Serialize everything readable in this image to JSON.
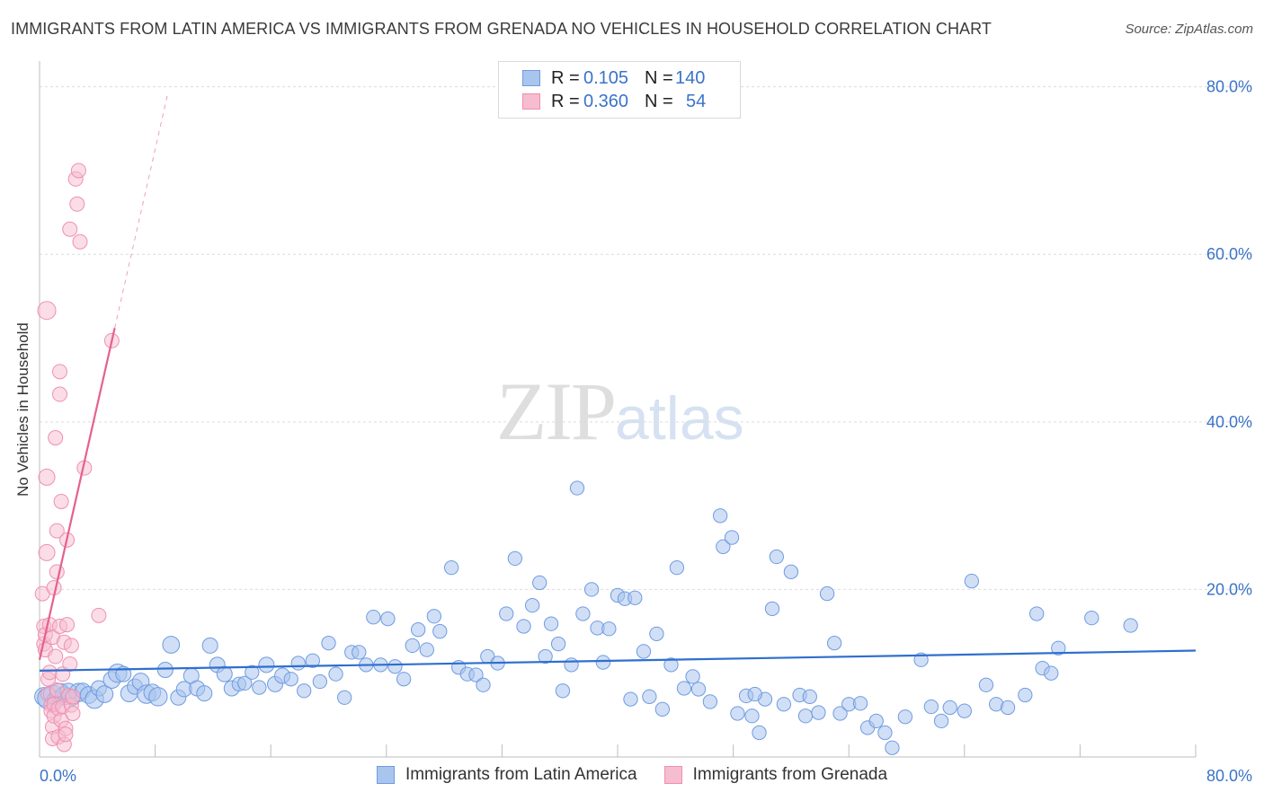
{
  "title": "IMMIGRANTS FROM LATIN AMERICA VS IMMIGRANTS FROM GRENADA NO VEHICLES IN HOUSEHOLD CORRELATION CHART",
  "source": "Source: ZipAtlas.com",
  "watermark": {
    "part1": "ZIP",
    "part2": "atlas"
  },
  "legend": {
    "rows": [
      {
        "r_label": "R =",
        "r_value": "0.105",
        "n_label": "N =",
        "n_value": "140"
      },
      {
        "r_label": "R =",
        "r_value": "0.360",
        "n_label": "N =",
        "n_value": "54"
      }
    ]
  },
  "bottom_legend": [
    "Immigrants from Latin America",
    "Immigrants from Grenada"
  ],
  "colors": {
    "blue_fill": "#a9c5ee",
    "blue_stroke": "#6f9be0",
    "blue_line": "#2f6fcf",
    "pink_fill": "#f6bcd0",
    "pink_stroke": "#ef90b0",
    "pink_line": "#e6608f",
    "tick_text": "#3a73c9",
    "grid": "#dcdcdc"
  },
  "chart_data": {
    "type": "scatter",
    "title": "IMMIGRANTS FROM LATIN AMERICA VS IMMIGRANTS FROM GRENADA NO VEHICLES IN HOUSEHOLD CORRELATION CHART",
    "xlabel": "",
    "ylabel": "No Vehicles in Household",
    "xlim": [
      0,
      80
    ],
    "ylim": [
      0,
      82
    ],
    "x_tick_labels": [
      "0.0%",
      "80.0%"
    ],
    "y_ticks": [
      20,
      40,
      60,
      80
    ],
    "y_tick_labels": [
      "20.0%",
      "40.0%",
      "60.0%",
      "80.0%"
    ],
    "grid": true,
    "legend_position": "top-center",
    "series": [
      {
        "name": "Immigrants from Latin America",
        "color": "#a9c5ee",
        "trend": {
          "x": [
            0,
            80
          ],
          "y": [
            10.3,
            12.7
          ]
        },
        "points": [
          [
            0.3,
            7.2,
            12
          ],
          [
            0.6,
            7.0,
            14
          ],
          [
            0.9,
            7.5,
            12
          ],
          [
            1.1,
            6.8,
            11
          ],
          [
            1.4,
            7.6,
            13
          ],
          [
            1.7,
            7.3,
            12
          ],
          [
            2.0,
            7.8,
            11
          ],
          [
            2.3,
            7.1,
            10
          ],
          [
            2.7,
            7.7,
            12
          ],
          [
            3.0,
            7.9,
            10
          ],
          [
            3.4,
            7.4,
            11
          ],
          [
            3.8,
            6.9,
            12
          ],
          [
            4.1,
            8.2,
            10
          ],
          [
            4.5,
            7.5,
            11
          ],
          [
            5.0,
            9.2,
            11
          ],
          [
            5.4,
            10.0,
            12
          ],
          [
            5.8,
            9.9,
            10
          ],
          [
            6.2,
            7.6,
            11
          ],
          [
            6.6,
            8.4,
            10
          ],
          [
            7.0,
            9.0,
            11
          ],
          [
            7.4,
            7.5,
            12
          ],
          [
            7.8,
            7.7,
            11
          ],
          [
            8.2,
            7.2,
            12
          ],
          [
            8.7,
            10.4,
            10
          ],
          [
            9.1,
            13.4,
            11
          ],
          [
            9.6,
            7.1,
            10
          ],
          [
            10.0,
            8.1,
            10
          ],
          [
            10.5,
            9.7,
            10
          ],
          [
            10.9,
            8.2,
            10
          ],
          [
            11.4,
            7.6,
            10
          ],
          [
            11.8,
            13.3,
            10
          ],
          [
            12.3,
            11.0,
            10
          ],
          [
            12.8,
            9.9,
            10
          ],
          [
            13.3,
            8.2,
            10
          ],
          [
            13.8,
            8.7,
            9
          ],
          [
            14.2,
            8.8,
            9
          ],
          [
            14.7,
            10.1,
            9
          ],
          [
            15.2,
            8.3,
            9
          ],
          [
            15.7,
            11.0,
            10
          ],
          [
            16.3,
            8.7,
            10
          ],
          [
            16.8,
            9.7,
            10
          ],
          [
            17.4,
            9.3,
            9
          ],
          [
            17.9,
            11.2,
            9
          ],
          [
            18.3,
            7.9,
            9
          ],
          [
            18.9,
            11.5,
            9
          ],
          [
            19.4,
            9.0,
            9
          ],
          [
            20.0,
            13.6,
            9
          ],
          [
            20.5,
            9.9,
            9
          ],
          [
            21.1,
            7.1,
            9
          ],
          [
            21.6,
            12.5,
            9
          ],
          [
            22.1,
            12.5,
            9
          ],
          [
            22.6,
            11.0,
            9
          ],
          [
            23.1,
            16.7,
            9
          ],
          [
            23.6,
            11.0,
            9
          ],
          [
            24.1,
            16.5,
            9
          ],
          [
            24.6,
            10.8,
            9
          ],
          [
            25.2,
            9.3,
            9
          ],
          [
            25.8,
            13.3,
            9
          ],
          [
            26.2,
            15.2,
            9
          ],
          [
            26.8,
            12.8,
            9
          ],
          [
            27.3,
            16.8,
            9
          ],
          [
            27.7,
            15.0,
            9
          ],
          [
            28.5,
            22.6,
            9
          ],
          [
            29.0,
            10.7,
            9
          ],
          [
            29.6,
            9.9,
            9
          ],
          [
            30.2,
            9.8,
            9
          ],
          [
            30.7,
            8.6,
            9
          ],
          [
            31.0,
            12.0,
            9
          ],
          [
            31.7,
            11.2,
            9
          ],
          [
            32.3,
            17.1,
            9
          ],
          [
            32.9,
            23.7,
            9
          ],
          [
            33.5,
            15.6,
            9
          ],
          [
            34.1,
            18.1,
            9
          ],
          [
            34.6,
            20.8,
            9
          ],
          [
            35.0,
            12.0,
            9
          ],
          [
            35.4,
            15.9,
            9
          ],
          [
            35.9,
            13.5,
            9
          ],
          [
            36.2,
            7.9,
            9
          ],
          [
            36.8,
            11.0,
            9
          ],
          [
            37.2,
            32.1,
            9
          ],
          [
            37.6,
            17.1,
            9
          ],
          [
            38.2,
            20.0,
            9
          ],
          [
            38.6,
            15.4,
            9
          ],
          [
            39.0,
            11.3,
            9
          ],
          [
            39.4,
            15.3,
            9
          ],
          [
            40.0,
            19.3,
            9
          ],
          [
            40.5,
            18.9,
            9
          ],
          [
            40.9,
            6.9,
            9
          ],
          [
            41.2,
            19.0,
            9
          ],
          [
            41.8,
            12.6,
            9
          ],
          [
            42.2,
            7.2,
            9
          ],
          [
            42.7,
            14.7,
            9
          ],
          [
            43.1,
            5.7,
            9
          ],
          [
            43.7,
            11.0,
            9
          ],
          [
            44.1,
            22.6,
            9
          ],
          [
            44.6,
            8.2,
            9
          ],
          [
            45.2,
            9.6,
            9
          ],
          [
            45.6,
            8.1,
            9
          ],
          [
            46.4,
            6.6,
            9
          ],
          [
            47.1,
            28.8,
            9
          ],
          [
            47.3,
            25.1,
            9
          ],
          [
            47.9,
            26.2,
            9
          ],
          [
            48.3,
            5.2,
            9
          ],
          [
            48.9,
            7.3,
            9
          ],
          [
            49.3,
            4.9,
            9
          ],
          [
            49.8,
            2.9,
            9
          ],
          [
            50.2,
            6.9,
            9
          ],
          [
            50.7,
            17.7,
            9
          ],
          [
            51.0,
            23.9,
            9
          ],
          [
            51.5,
            6.3,
            9
          ],
          [
            52.0,
            22.1,
            9
          ],
          [
            52.6,
            7.4,
            9
          ],
          [
            53.0,
            4.9,
            9
          ],
          [
            53.3,
            7.2,
            9
          ],
          [
            53.9,
            5.3,
            9
          ],
          [
            54.5,
            19.5,
            9
          ],
          [
            55.0,
            13.6,
            9
          ],
          [
            55.4,
            5.2,
            9
          ],
          [
            56.0,
            6.3,
            9
          ],
          [
            56.8,
            6.4,
            9
          ],
          [
            57.3,
            3.5,
            9
          ],
          [
            57.9,
            4.3,
            9
          ],
          [
            58.5,
            2.9,
            9
          ],
          [
            59.0,
            1.1,
            9
          ],
          [
            59.9,
            4.8,
            9
          ],
          [
            61.0,
            11.6,
            9
          ],
          [
            61.7,
            6.0,
            9
          ],
          [
            62.4,
            4.3,
            9
          ],
          [
            63.0,
            5.9,
            9
          ],
          [
            64.0,
            5.5,
            9
          ],
          [
            64.5,
            21.0,
            9
          ],
          [
            65.5,
            8.6,
            9
          ],
          [
            66.2,
            6.3,
            9
          ],
          [
            67.0,
            5.9,
            9
          ],
          [
            68.2,
            7.4,
            9
          ],
          [
            69.0,
            17.1,
            9
          ],
          [
            69.4,
            10.6,
            9
          ],
          [
            70.0,
            10.0,
            9
          ],
          [
            70.5,
            13.0,
            9
          ],
          [
            72.8,
            16.6,
            9
          ],
          [
            75.5,
            15.7,
            9
          ],
          [
            49.5,
            7.5,
            9
          ]
        ]
      },
      {
        "name": "Immigrants from Grenada",
        "color": "#f6bcd0",
        "trend": {
          "x": [
            0,
            5.2
          ],
          "y": [
            11.6,
            51.2
          ]
        },
        "trend_dashed": {
          "x": [
            5.2,
            8.9
          ],
          "y": [
            51.2,
            79.4
          ]
        },
        "points": [
          [
            0.2,
            19.5,
            8
          ],
          [
            0.3,
            15.6,
            8
          ],
          [
            0.3,
            13.5,
            8
          ],
          [
            0.4,
            14.6,
            8
          ],
          [
            0.4,
            12.8,
            8
          ],
          [
            0.5,
            24.4,
            9
          ],
          [
            0.5,
            33.4,
            9
          ],
          [
            0.5,
            53.3,
            10
          ],
          [
            0.6,
            9.3,
            8
          ],
          [
            0.6,
            7.5,
            8
          ],
          [
            0.7,
            10.1,
            8
          ],
          [
            0.7,
            15.8,
            8
          ],
          [
            0.8,
            6.2,
            8
          ],
          [
            0.8,
            5.5,
            8
          ],
          [
            0.9,
            3.6,
            8
          ],
          [
            0.9,
            2.2,
            8
          ],
          [
            0.9,
            14.3,
            8
          ],
          [
            1.0,
            20.2,
            8
          ],
          [
            1.0,
            4.9,
            8
          ],
          [
            1.0,
            6.3,
            8
          ],
          [
            1.1,
            12.0,
            8
          ],
          [
            1.1,
            38.1,
            8
          ],
          [
            1.2,
            22.1,
            8
          ],
          [
            1.2,
            27.0,
            8
          ],
          [
            1.2,
            8.0,
            8
          ],
          [
            1.3,
            5.8,
            8
          ],
          [
            1.3,
            2.4,
            8
          ],
          [
            1.4,
            15.6,
            8
          ],
          [
            1.4,
            43.3,
            8
          ],
          [
            1.4,
            46.0,
            8
          ],
          [
            1.5,
            30.5,
            8
          ],
          [
            1.5,
            4.4,
            8
          ],
          [
            1.6,
            9.9,
            8
          ],
          [
            1.6,
            6.0,
            8
          ],
          [
            1.7,
            13.7,
            8
          ],
          [
            1.7,
            1.5,
            8
          ],
          [
            1.8,
            3.4,
            8
          ],
          [
            1.8,
            2.7,
            8
          ],
          [
            1.9,
            25.9,
            8
          ],
          [
            1.9,
            15.8,
            8
          ],
          [
            2.0,
            7.3,
            8
          ],
          [
            2.1,
            11.1,
            8
          ],
          [
            2.2,
            6.2,
            8
          ],
          [
            2.3,
            7.2,
            8
          ],
          [
            2.1,
            63.0,
            8
          ],
          [
            2.2,
            13.3,
            8
          ],
          [
            2.3,
            5.2,
            8
          ],
          [
            2.5,
            69.0,
            8
          ],
          [
            2.6,
            66.0,
            8
          ],
          [
            2.7,
            70.0,
            8
          ],
          [
            2.8,
            61.5,
            8
          ],
          [
            3.1,
            34.5,
            8
          ],
          [
            4.1,
            16.9,
            8
          ],
          [
            5.0,
            49.7,
            8
          ]
        ]
      }
    ]
  }
}
